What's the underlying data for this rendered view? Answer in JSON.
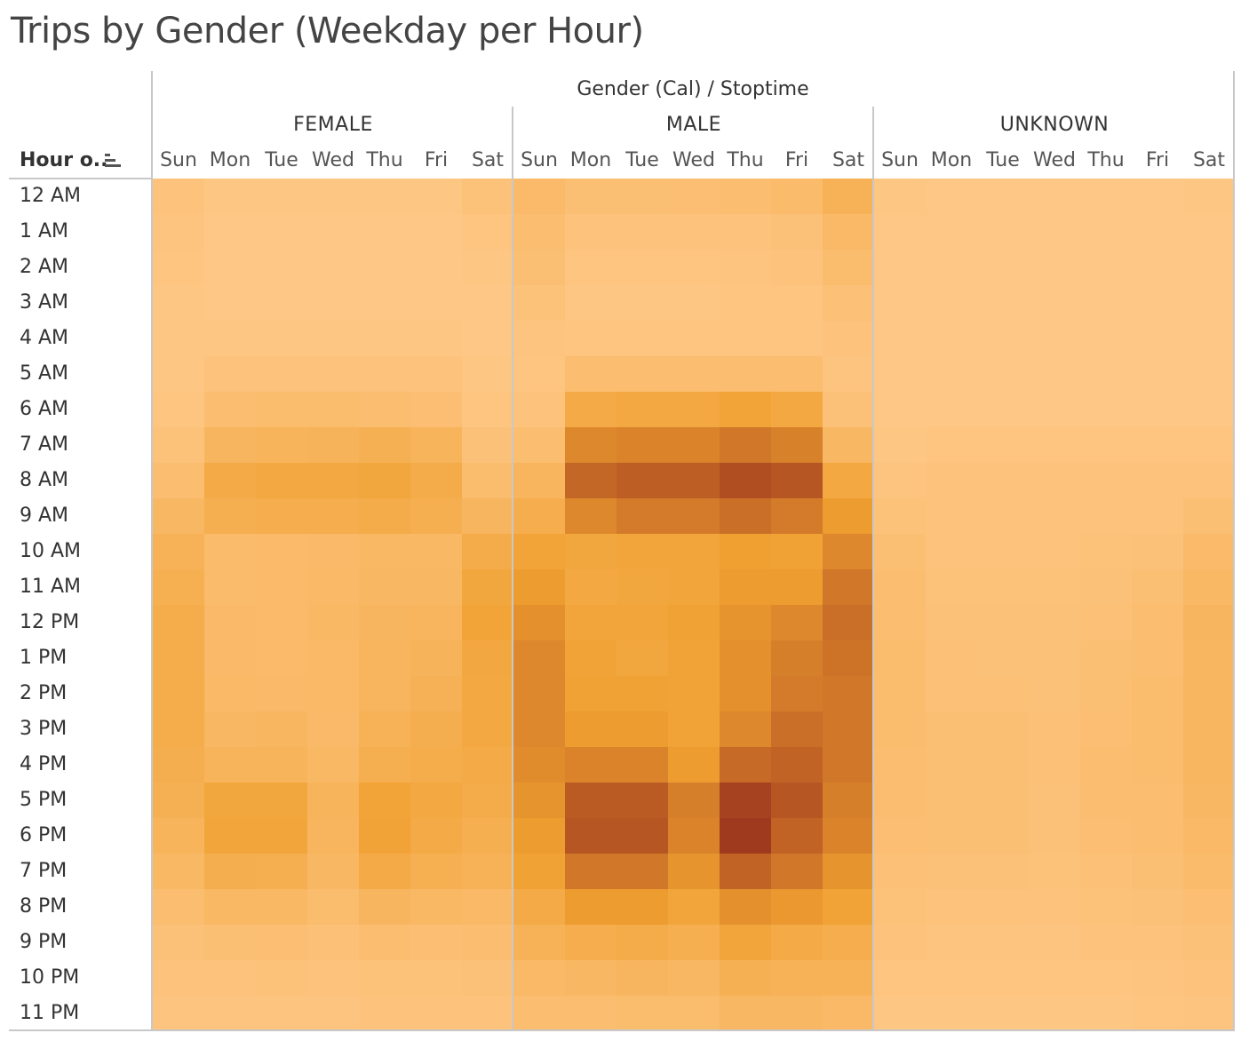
{
  "title": "Trips by Gender (Weekday per Hour)",
  "column_header": "Gender (Cal) / Stoptime",
  "row_header": "Hour o..",
  "icons": {
    "sort": "sort-descending-icon"
  },
  "genders": [
    "FEMALE",
    "MALE",
    "UNKNOWN"
  ],
  "days": [
    "Sun",
    "Mon",
    "Tue",
    "Wed",
    "Thu",
    "Fri",
    "Sat"
  ],
  "hours": [
    "12 AM",
    "1 AM",
    "2 AM",
    "3 AM",
    "4 AM",
    "5 AM",
    "6 AM",
    "7 AM",
    "8 AM",
    "9 AM",
    "10 AM",
    "11 AM",
    "12 PM",
    "1 PM",
    "2 PM",
    "3 PM",
    "4 PM",
    "5 PM",
    "6 PM",
    "7 PM",
    "8 PM",
    "9 PM",
    "10 PM",
    "11 PM"
  ],
  "colors": {
    "low": "#ffc98a",
    "mid": "#f0a030",
    "high": "#a03a1e"
  },
  "chart_data": {
    "type": "heatmap",
    "title": "Trips by Gender (Weekday per Hour)",
    "x_groups_label": "Gender (Cal) / Stoptime",
    "y_label": "Hour o..",
    "color_scale": "relative intensity 0-1 (light orange to dark red-brown)",
    "series": [
      {
        "name": "FEMALE",
        "values": [
          [
            0.07,
            0.04,
            0.04,
            0.04,
            0.04,
            0.04,
            0.09
          ],
          [
            0.06,
            0.03,
            0.03,
            0.03,
            0.03,
            0.03,
            0.05
          ],
          [
            0.05,
            0.03,
            0.03,
            0.03,
            0.03,
            0.03,
            0.04
          ],
          [
            0.04,
            0.03,
            0.03,
            0.03,
            0.03,
            0.03,
            0.03
          ],
          [
            0.04,
            0.04,
            0.04,
            0.04,
            0.04,
            0.04,
            0.03
          ],
          [
            0.04,
            0.07,
            0.07,
            0.08,
            0.07,
            0.07,
            0.04
          ],
          [
            0.05,
            0.15,
            0.16,
            0.16,
            0.15,
            0.13,
            0.05
          ],
          [
            0.09,
            0.24,
            0.26,
            0.27,
            0.3,
            0.26,
            0.1
          ],
          [
            0.15,
            0.38,
            0.4,
            0.4,
            0.42,
            0.36,
            0.16
          ],
          [
            0.22,
            0.32,
            0.34,
            0.34,
            0.36,
            0.32,
            0.24
          ],
          [
            0.28,
            0.17,
            0.18,
            0.19,
            0.21,
            0.21,
            0.36
          ],
          [
            0.31,
            0.17,
            0.18,
            0.2,
            0.22,
            0.22,
            0.42
          ],
          [
            0.35,
            0.19,
            0.18,
            0.21,
            0.24,
            0.25,
            0.45
          ],
          [
            0.35,
            0.19,
            0.18,
            0.2,
            0.25,
            0.27,
            0.41
          ],
          [
            0.35,
            0.2,
            0.19,
            0.2,
            0.25,
            0.29,
            0.4
          ],
          [
            0.35,
            0.22,
            0.23,
            0.19,
            0.28,
            0.33,
            0.4
          ],
          [
            0.33,
            0.26,
            0.26,
            0.21,
            0.32,
            0.35,
            0.38
          ],
          [
            0.3,
            0.42,
            0.42,
            0.26,
            0.45,
            0.4,
            0.36
          ],
          [
            0.26,
            0.44,
            0.44,
            0.25,
            0.46,
            0.38,
            0.32
          ],
          [
            0.21,
            0.33,
            0.32,
            0.22,
            0.37,
            0.31,
            0.28
          ],
          [
            0.15,
            0.21,
            0.21,
            0.16,
            0.24,
            0.21,
            0.2
          ],
          [
            0.1,
            0.12,
            0.13,
            0.11,
            0.14,
            0.13,
            0.14
          ],
          [
            0.07,
            0.08,
            0.09,
            0.08,
            0.09,
            0.09,
            0.1
          ],
          [
            0.06,
            0.06,
            0.06,
            0.06,
            0.07,
            0.07,
            0.08
          ]
        ]
      },
      {
        "name": "MALE",
        "values": [
          [
            0.18,
            0.12,
            0.12,
            0.13,
            0.14,
            0.17,
            0.28
          ],
          [
            0.15,
            0.07,
            0.07,
            0.07,
            0.08,
            0.1,
            0.2
          ],
          [
            0.12,
            0.05,
            0.05,
            0.05,
            0.06,
            0.07,
            0.16
          ],
          [
            0.09,
            0.04,
            0.04,
            0.04,
            0.05,
            0.05,
            0.11
          ],
          [
            0.06,
            0.05,
            0.05,
            0.05,
            0.05,
            0.05,
            0.07
          ],
          [
            0.05,
            0.14,
            0.14,
            0.15,
            0.15,
            0.15,
            0.06
          ],
          [
            0.08,
            0.38,
            0.4,
            0.4,
            0.45,
            0.4,
            0.1
          ],
          [
            0.14,
            0.62,
            0.64,
            0.64,
            0.7,
            0.65,
            0.22
          ],
          [
            0.25,
            0.78,
            0.82,
            0.82,
            0.9,
            0.86,
            0.4
          ],
          [
            0.34,
            0.62,
            0.68,
            0.68,
            0.74,
            0.68,
            0.52
          ],
          [
            0.45,
            0.42,
            0.44,
            0.44,
            0.5,
            0.48,
            0.62
          ],
          [
            0.52,
            0.4,
            0.42,
            0.44,
            0.52,
            0.52,
            0.7
          ],
          [
            0.58,
            0.44,
            0.44,
            0.48,
            0.56,
            0.62,
            0.74
          ],
          [
            0.62,
            0.46,
            0.42,
            0.46,
            0.58,
            0.66,
            0.72
          ],
          [
            0.62,
            0.48,
            0.48,
            0.46,
            0.58,
            0.68,
            0.7
          ],
          [
            0.62,
            0.52,
            0.52,
            0.46,
            0.62,
            0.74,
            0.7
          ],
          [
            0.6,
            0.64,
            0.64,
            0.52,
            0.76,
            0.8,
            0.7
          ],
          [
            0.56,
            0.84,
            0.84,
            0.66,
            0.96,
            0.86,
            0.66
          ],
          [
            0.52,
            0.86,
            0.86,
            0.64,
            1.0,
            0.8,
            0.64
          ],
          [
            0.47,
            0.7,
            0.7,
            0.56,
            0.8,
            0.7,
            0.56
          ],
          [
            0.38,
            0.52,
            0.52,
            0.44,
            0.58,
            0.54,
            0.46
          ],
          [
            0.28,
            0.34,
            0.36,
            0.32,
            0.44,
            0.38,
            0.34
          ],
          [
            0.2,
            0.22,
            0.24,
            0.22,
            0.3,
            0.28,
            0.28
          ],
          [
            0.14,
            0.14,
            0.16,
            0.16,
            0.22,
            0.22,
            0.2
          ]
        ]
      },
      {
        "name": "UNKNOWN",
        "values": [
          [
            0.04,
            0.03,
            0.03,
            0.03,
            0.03,
            0.03,
            0.04
          ],
          [
            0.03,
            0.02,
            0.02,
            0.02,
            0.02,
            0.02,
            0.03
          ],
          [
            0.03,
            0.02,
            0.02,
            0.02,
            0.02,
            0.02,
            0.03
          ],
          [
            0.02,
            0.02,
            0.02,
            0.02,
            0.02,
            0.02,
            0.02
          ],
          [
            0.02,
            0.02,
            0.02,
            0.02,
            0.02,
            0.02,
            0.02
          ],
          [
            0.02,
            0.02,
            0.02,
            0.02,
            0.02,
            0.02,
            0.02
          ],
          [
            0.03,
            0.03,
            0.03,
            0.03,
            0.03,
            0.03,
            0.03
          ],
          [
            0.04,
            0.05,
            0.05,
            0.05,
            0.05,
            0.05,
            0.05
          ],
          [
            0.06,
            0.07,
            0.07,
            0.07,
            0.07,
            0.07,
            0.07
          ],
          [
            0.09,
            0.07,
            0.07,
            0.07,
            0.07,
            0.07,
            0.12
          ],
          [
            0.12,
            0.08,
            0.08,
            0.08,
            0.09,
            0.1,
            0.18
          ],
          [
            0.14,
            0.09,
            0.09,
            0.09,
            0.1,
            0.12,
            0.21
          ],
          [
            0.15,
            0.1,
            0.1,
            0.1,
            0.11,
            0.14,
            0.24
          ],
          [
            0.16,
            0.11,
            0.1,
            0.1,
            0.12,
            0.15,
            0.23
          ],
          [
            0.16,
            0.11,
            0.11,
            0.1,
            0.12,
            0.16,
            0.23
          ],
          [
            0.16,
            0.12,
            0.12,
            0.11,
            0.13,
            0.16,
            0.23
          ],
          [
            0.15,
            0.12,
            0.12,
            0.11,
            0.14,
            0.16,
            0.23
          ],
          [
            0.14,
            0.12,
            0.12,
            0.1,
            0.14,
            0.15,
            0.22
          ],
          [
            0.13,
            0.12,
            0.12,
            0.1,
            0.13,
            0.14,
            0.2
          ],
          [
            0.11,
            0.1,
            0.1,
            0.09,
            0.11,
            0.12,
            0.17
          ],
          [
            0.09,
            0.08,
            0.08,
            0.07,
            0.09,
            0.1,
            0.13
          ],
          [
            0.07,
            0.06,
            0.06,
            0.06,
            0.07,
            0.08,
            0.1
          ],
          [
            0.05,
            0.05,
            0.05,
            0.05,
            0.05,
            0.06,
            0.07
          ],
          [
            0.04,
            0.04,
            0.04,
            0.04,
            0.04,
            0.05,
            0.06
          ]
        ]
      }
    ]
  }
}
